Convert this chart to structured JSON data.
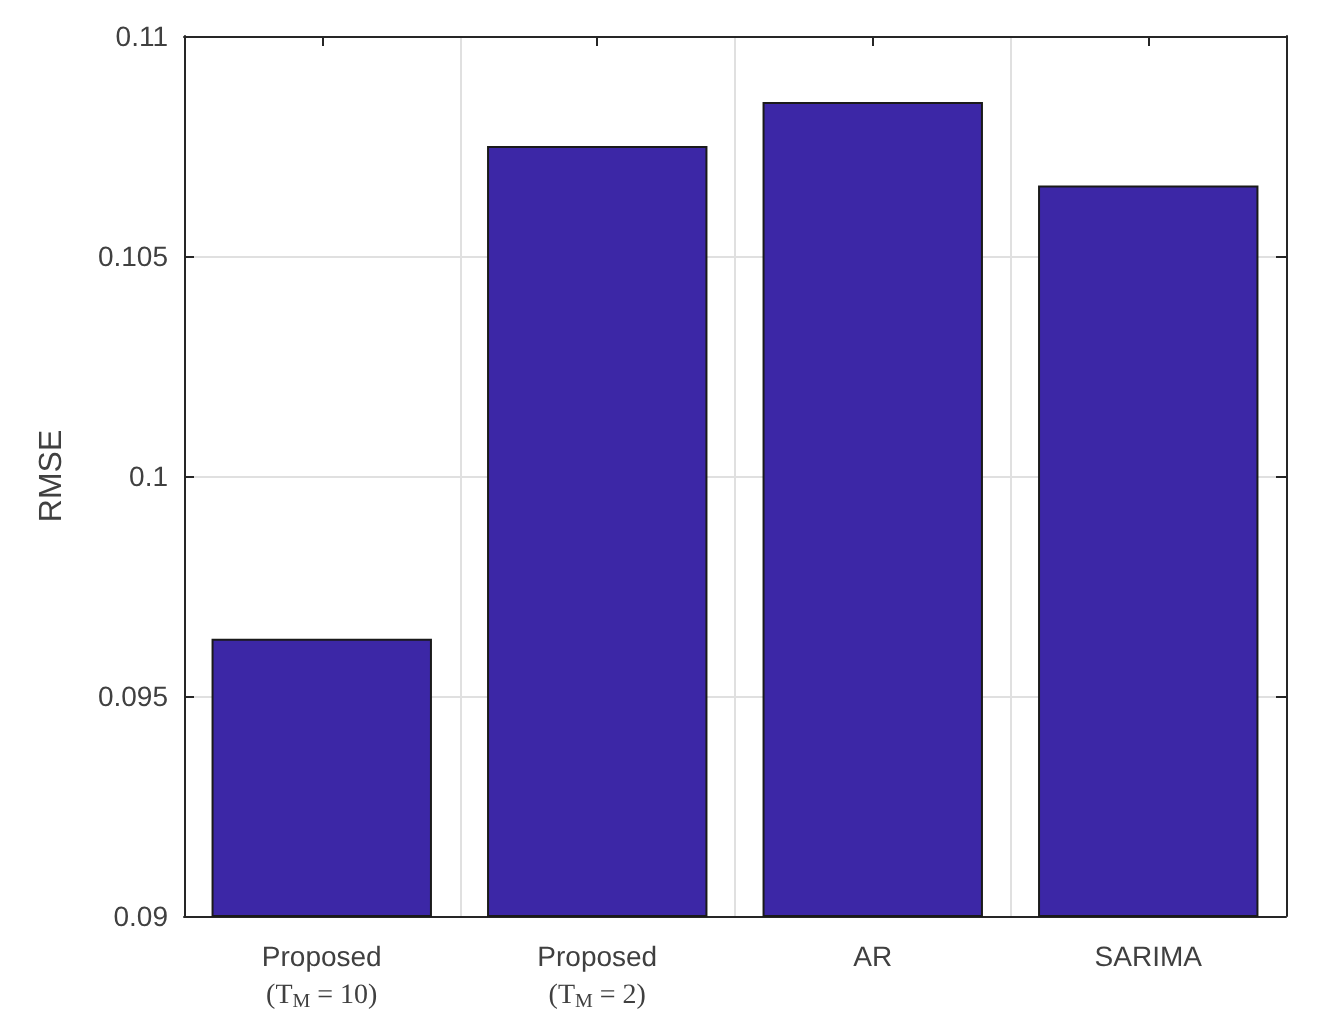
{
  "chart_data": {
    "type": "bar",
    "ylabel": "RMSE",
    "categories": [
      "Proposed\n(T$_{M}$ = 10)",
      "Proposed\n(T$_{M}$ = 2)",
      "AR",
      "SARIMA"
    ],
    "values": [
      0.0963,
      0.1075,
      0.1085,
      0.1066
    ],
    "color": "#3c27a6",
    "ylim": [
      0.09,
      0.11
    ],
    "yticks": [
      0.09,
      0.095,
      0.1,
      0.105,
      0.11
    ],
    "grid": true
  }
}
